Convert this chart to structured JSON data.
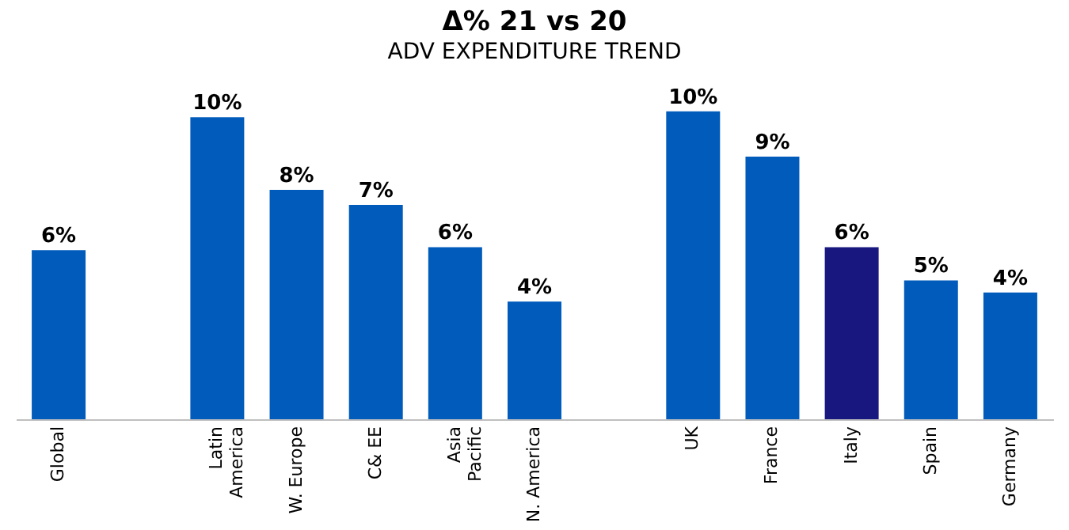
{
  "chart_data": {
    "type": "bar",
    "title": "Δ% 21 vs  20",
    "subtitle": "ADV EXPENDITURE TREND",
    "categories": [
      "Global",
      null,
      "Latin\nAmerica",
      "W. Europe",
      "C& EE",
      "Asia\nPacific",
      "N. America",
      null,
      "UK",
      "France",
      "Italy",
      "Spain",
      "Germany"
    ],
    "values": [
      5.6,
      null,
      10.0,
      7.6,
      7.1,
      5.7,
      3.9,
      null,
      10.2,
      8.7,
      5.7,
      4.6,
      4.2
    ],
    "value_labels": [
      "6%",
      null,
      "10%",
      "8%",
      "7%",
      "6%",
      "4%",
      null,
      "10%",
      "9%",
      "6%",
      "5%",
      "4%"
    ],
    "colors": [
      "#005bbb",
      null,
      "#005bbb",
      "#005bbb",
      "#005bbb",
      "#005bbb",
      "#005bbb",
      null,
      "#005bbb",
      "#005bbb",
      "#17177f",
      "#005bbb",
      "#005bbb"
    ],
    "grid": false
  }
}
